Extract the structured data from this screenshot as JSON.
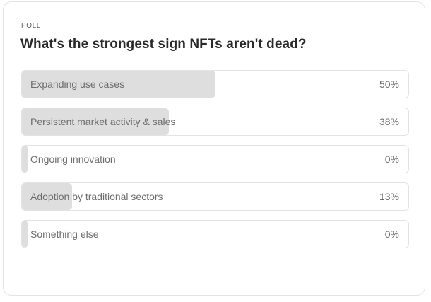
{
  "poll": {
    "eyebrow": "POLL",
    "question": "What's the strongest sign NFTs aren't dead?",
    "options": [
      {
        "label": "Expanding use cases",
        "percent_label": "50%",
        "fraction": 0.5
      },
      {
        "label": "Persistent market activity & sales",
        "percent_label": "38%",
        "fraction": 0.38
      },
      {
        "label": "Ongoing innovation",
        "percent_label": "0%",
        "fraction": 0.0
      },
      {
        "label": "Adoption by traditional sectors",
        "percent_label": "13%",
        "fraction": 0.13
      },
      {
        "label": "Something else",
        "percent_label": "0%",
        "fraction": 0.0
      }
    ]
  },
  "colors": {
    "fill": "#dedede",
    "border": "#e3e3e3",
    "text": "#6d6d6d",
    "title": "#2a2a2a"
  }
}
